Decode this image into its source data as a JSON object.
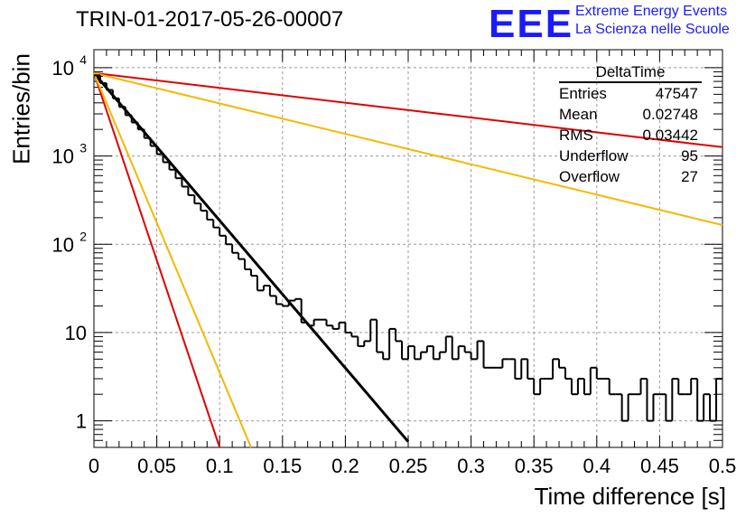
{
  "title": "TRIN-01-2017-05-26-00007",
  "logo": {
    "mark": "EEE",
    "line1": "Extreme Energy Events",
    "line2": "La Scienza nelle Scuole",
    "color": "#1a1aff"
  },
  "stats_box": {
    "name": "DeltaTime",
    "rows": [
      {
        "label": "Entries",
        "value": "47547"
      },
      {
        "label": "Mean",
        "value": "0.02748"
      },
      {
        "label": "RMS",
        "value": "0.03442"
      },
      {
        "label": "Underflow",
        "value": "95"
      },
      {
        "label": "Overflow",
        "value": "27"
      }
    ]
  },
  "chart_data": {
    "type": "line",
    "title": "TRIN-01-2017-05-26-00007",
    "xlabel": "Time difference [s]",
    "ylabel": "Entries/bin",
    "xlim": [
      0,
      0.5
    ],
    "ylim": [
      0.5,
      16000
    ],
    "yscale": "log",
    "grid": true,
    "x_ticks": [
      "0",
      "0.05",
      "0.1",
      "0.15",
      "0.2",
      "0.25",
      "0.3",
      "0.35",
      "0.4",
      "0.45",
      "0.5"
    ],
    "y_ticks": [
      {
        "value": 1,
        "label": "1"
      },
      {
        "value": 10,
        "label": "10"
      },
      {
        "value": 100,
        "label": "10",
        "exp": "2"
      },
      {
        "value": 1000,
        "label": "10",
        "exp": "3"
      },
      {
        "value": 10000,
        "label": "10",
        "exp": "4"
      }
    ],
    "histogram": {
      "color": "#000000",
      "bin_width": 0.005,
      "values": [
        8200,
        6700,
        5600,
        4500,
        3600,
        2900,
        2400,
        2000,
        1600,
        1300,
        1050,
        850,
        700,
        560,
        450,
        360,
        290,
        240,
        190,
        155,
        125,
        100,
        80,
        68,
        52,
        44,
        30,
        34,
        26,
        21,
        20,
        23,
        24,
        13,
        12,
        14,
        14,
        12,
        11,
        13,
        10,
        9,
        7,
        8,
        14,
        6,
        5,
        11,
        8,
        5,
        7,
        5,
        6,
        7,
        5,
        6,
        9,
        5,
        7,
        6,
        5,
        8,
        4,
        4,
        4,
        5,
        5,
        3,
        5,
        3,
        2,
        3,
        3,
        5,
        4,
        3,
        2,
        3,
        2,
        4,
        3,
        3,
        2,
        2,
        1,
        2,
        2,
        3,
        1,
        2,
        2,
        1,
        3,
        2,
        2,
        3,
        1,
        2,
        1,
        3
      ]
    },
    "series": [
      {
        "color": "#000000",
        "width": 3,
        "x": [
          0,
          0.25
        ],
        "y": [
          8700,
          0.58
        ]
      },
      {
        "color": "#e00000",
        "width": 2,
        "x": [
          0,
          0.5
        ],
        "y": [
          8700,
          1260
        ]
      },
      {
        "color": "#f5b800",
        "width": 2,
        "x": [
          0,
          0.5
        ],
        "y": [
          8700,
          165
        ]
      },
      {
        "color": "#e00000",
        "width": 2,
        "x": [
          0,
          0.1
        ],
        "y": [
          8700,
          0.5
        ]
      },
      {
        "color": "#f5b800",
        "width": 2,
        "x": [
          0,
          0.125
        ],
        "y": [
          8700,
          0.5
        ]
      }
    ]
  }
}
